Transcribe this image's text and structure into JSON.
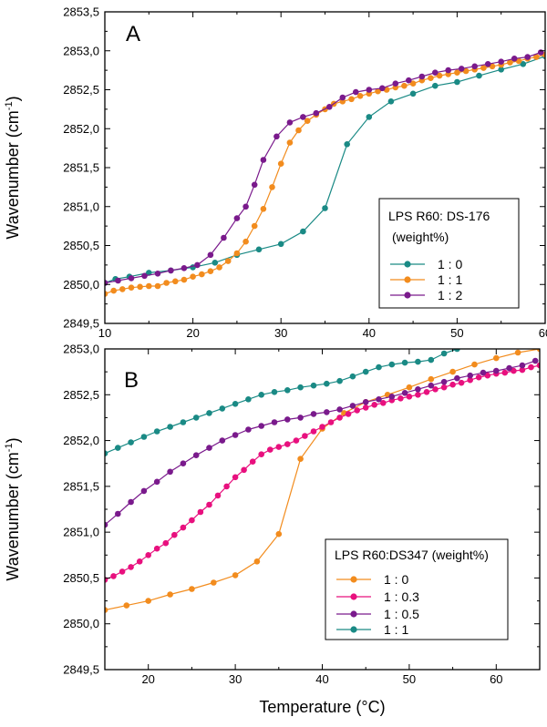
{
  "chart_data": [
    {
      "type": "line",
      "panel_label": "A",
      "title": "",
      "xlabel": "",
      "ylabel": "Wavenumber (cm",
      "ylabel_sup": "-1",
      "ylabel_end": ")",
      "xlim": [
        10,
        60
      ],
      "ylim": [
        2849.5,
        2853.5
      ],
      "xticks": [
        10,
        20,
        30,
        40,
        50,
        60
      ],
      "xtick_labels": [
        "10",
        "20",
        "30",
        "40",
        "50",
        "60"
      ],
      "yticks": [
        2849.5,
        2850.0,
        2850.5,
        2851.0,
        2851.5,
        2852.0,
        2852.5,
        2853.0,
        2853.5
      ],
      "ytick_labels": [
        "2849,5",
        "2850,0",
        "2850,5",
        "2851,0",
        "2851,5",
        "2852,0",
        "2852,5",
        "2853,0",
        "2853,5"
      ],
      "grid": false,
      "legend_position": "center-right",
      "legend_title_line1": "LPS R60: DS-176",
      "legend_title_line2": "(weight%)",
      "series": [
        {
          "name": "1 : 0",
          "color": "#1a8a85",
          "points": [
            [
              10.0,
              2850.02
            ],
            [
              11.2,
              2850.07
            ],
            [
              12.8,
              2850.1
            ],
            [
              15.0,
              2850.15
            ],
            [
              17.5,
              2850.18
            ],
            [
              20.0,
              2850.22
            ],
            [
              22.5,
              2850.28
            ],
            [
              25.0,
              2850.38
            ],
            [
              27.5,
              2850.45
            ],
            [
              30.0,
              2850.52
            ],
            [
              32.5,
              2850.68
            ],
            [
              35.0,
              2850.98
            ],
            [
              37.5,
              2851.8
            ],
            [
              40.0,
              2852.15
            ],
            [
              42.5,
              2852.35
            ],
            [
              45.0,
              2852.45
            ],
            [
              47.5,
              2852.55
            ],
            [
              50.0,
              2852.6
            ],
            [
              52.5,
              2852.68
            ],
            [
              55.0,
              2852.76
            ],
            [
              57.5,
              2852.83
            ],
            [
              60.0,
              2852.93
            ]
          ]
        },
        {
          "name": "1 : 1",
          "color": "#f28c1e",
          "points": [
            [
              10.0,
              2849.88
            ],
            [
              11.0,
              2849.92
            ],
            [
              12.0,
              2849.94
            ],
            [
              13.0,
              2849.96
            ],
            [
              14.0,
              2849.97
            ],
            [
              15.0,
              2849.98
            ],
            [
              16.0,
              2849.98
            ],
            [
              17.0,
              2850.02
            ],
            [
              18.0,
              2850.04
            ],
            [
              19.0,
              2850.06
            ],
            [
              20.0,
              2850.1
            ],
            [
              21.0,
              2850.13
            ],
            [
              22.0,
              2850.17
            ],
            [
              23.0,
              2850.22
            ],
            [
              24.0,
              2850.3
            ],
            [
              25.0,
              2850.4
            ],
            [
              26.0,
              2850.55
            ],
            [
              27.0,
              2850.75
            ],
            [
              28.0,
              2850.97
            ],
            [
              29.0,
              2851.25
            ],
            [
              30.0,
              2851.55
            ],
            [
              31.0,
              2851.82
            ],
            [
              32.0,
              2851.98
            ],
            [
              33.0,
              2852.1
            ],
            [
              34.0,
              2852.18
            ],
            [
              35.0,
              2852.25
            ],
            [
              36.0,
              2852.32
            ],
            [
              37.0,
              2852.35
            ],
            [
              38.0,
              2852.38
            ],
            [
              39.0,
              2852.42
            ],
            [
              40.0,
              2852.45
            ],
            [
              41.0,
              2852.48
            ],
            [
              42.0,
              2852.5
            ],
            [
              43.0,
              2852.53
            ],
            [
              44.0,
              2852.55
            ],
            [
              45.0,
              2852.58
            ],
            [
              46.0,
              2852.62
            ],
            [
              47.0,
              2852.65
            ],
            [
              48.0,
              2852.68
            ],
            [
              49.0,
              2852.7
            ],
            [
              50.0,
              2852.72
            ],
            [
              51.0,
              2852.74
            ],
            [
              52.0,
              2852.76
            ],
            [
              53.0,
              2852.78
            ],
            [
              54.0,
              2852.8
            ],
            [
              55.0,
              2852.82
            ],
            [
              56.0,
              2852.85
            ],
            [
              57.0,
              2852.87
            ],
            [
              58.0,
              2852.9
            ],
            [
              59.0,
              2852.92
            ],
            [
              60.0,
              2852.95
            ]
          ]
        },
        {
          "name": "1 : 2",
          "color": "#7a1a8c",
          "points": [
            [
              10.0,
              2850.02
            ],
            [
              11.5,
              2850.05
            ],
            [
              13.0,
              2850.08
            ],
            [
              14.5,
              2850.11
            ],
            [
              16.0,
              2850.14
            ],
            [
              17.5,
              2850.18
            ],
            [
              19.0,
              2850.21
            ],
            [
              20.5,
              2850.25
            ],
            [
              22.0,
              2850.38
            ],
            [
              23.5,
              2850.6
            ],
            [
              25.0,
              2850.85
            ],
            [
              26.0,
              2851.0
            ],
            [
              27.0,
              2851.28
            ],
            [
              28.0,
              2851.6
            ],
            [
              29.5,
              2851.9
            ],
            [
              31.0,
              2852.08
            ],
            [
              32.5,
              2852.15
            ],
            [
              34.0,
              2852.2
            ],
            [
              35.5,
              2852.28
            ],
            [
              37.0,
              2852.4
            ],
            [
              38.5,
              2852.47
            ],
            [
              40.0,
              2852.5
            ],
            [
              41.5,
              2852.52
            ],
            [
              43.0,
              2852.58
            ],
            [
              44.5,
              2852.62
            ],
            [
              46.0,
              2852.67
            ],
            [
              47.5,
              2852.72
            ],
            [
              49.0,
              2852.75
            ],
            [
              50.5,
              2852.77
            ],
            [
              52.0,
              2852.8
            ],
            [
              53.5,
              2852.83
            ],
            [
              55.0,
              2852.86
            ],
            [
              56.5,
              2852.9
            ],
            [
              58.0,
              2852.92
            ],
            [
              59.5,
              2852.98
            ]
          ]
        }
      ]
    },
    {
      "type": "line",
      "panel_label": "B",
      "title": "",
      "xlabel": "Temperature (°C)",
      "ylabel": "Wavenumber (cm",
      "ylabel_sup": "-1",
      "ylabel_end": ")",
      "xlim": [
        15,
        65
      ],
      "ylim": [
        2849.5,
        2853.0
      ],
      "xticks": [
        20,
        30,
        40,
        50,
        60
      ],
      "xtick_labels": [
        "20",
        "30",
        "40",
        "50",
        "60"
      ],
      "yticks": [
        2849.5,
        2850.0,
        2850.5,
        2851.0,
        2851.5,
        2852.0,
        2852.5,
        2853.0
      ],
      "ytick_labels": [
        "2849,5",
        "2850,0",
        "2850,5",
        "2851,0",
        "2851,5",
        "2852,0",
        "2852,5",
        "2853,0"
      ],
      "grid": false,
      "legend_position": "bottom-right",
      "legend_title_line1": "LPS R60:DS347 (weight%)",
      "series": [
        {
          "name": "1 : 0",
          "color": "#f28c1e",
          "points": [
            [
              15.0,
              2850.15
            ],
            [
              17.5,
              2850.2
            ],
            [
              20.0,
              2850.25
            ],
            [
              22.5,
              2850.32
            ],
            [
              25.0,
              2850.38
            ],
            [
              27.5,
              2850.45
            ],
            [
              30.0,
              2850.53
            ],
            [
              32.5,
              2850.68
            ],
            [
              35.0,
              2850.98
            ],
            [
              37.5,
              2851.8
            ],
            [
              40.0,
              2852.13
            ],
            [
              42.5,
              2852.3
            ],
            [
              45.0,
              2852.42
            ],
            [
              47.5,
              2852.5
            ],
            [
              50.0,
              2852.58
            ],
            [
              52.5,
              2852.67
            ],
            [
              55.0,
              2852.75
            ],
            [
              57.5,
              2852.83
            ],
            [
              60.0,
              2852.9
            ],
            [
              62.5,
              2852.96
            ],
            [
              65.0,
              2853.0
            ]
          ]
        },
        {
          "name": "1 : 0.3",
          "color": "#e8107e",
          "points": [
            [
              15.0,
              2850.48
            ],
            [
              16.0,
              2850.52
            ],
            [
              17.0,
              2850.57
            ],
            [
              18.0,
              2850.62
            ],
            [
              19.0,
              2850.68
            ],
            [
              20.0,
              2850.75
            ],
            [
              21.0,
              2850.82
            ],
            [
              22.0,
              2850.88
            ],
            [
              23.0,
              2850.97
            ],
            [
              24.0,
              2851.05
            ],
            [
              25.0,
              2851.13
            ],
            [
              26.0,
              2851.22
            ],
            [
              27.0,
              2851.3
            ],
            [
              28.0,
              2851.4
            ],
            [
              29.0,
              2851.5
            ],
            [
              30.0,
              2851.6
            ],
            [
              31.0,
              2851.68
            ],
            [
              32.0,
              2851.77
            ],
            [
              33.0,
              2851.85
            ],
            [
              34.0,
              2851.9
            ],
            [
              35.0,
              2851.93
            ],
            [
              36.0,
              2851.96
            ],
            [
              37.0,
              2852.0
            ],
            [
              38.0,
              2852.05
            ],
            [
              39.0,
              2852.1
            ],
            [
              40.0,
              2852.15
            ],
            [
              41.0,
              2852.2
            ],
            [
              42.0,
              2852.25
            ],
            [
              43.0,
              2852.29
            ],
            [
              44.0,
              2852.33
            ],
            [
              45.0,
              2852.36
            ],
            [
              46.0,
              2852.39
            ],
            [
              47.0,
              2852.41
            ],
            [
              48.0,
              2852.44
            ],
            [
              49.0,
              2852.46
            ],
            [
              50.0,
              2852.48
            ],
            [
              51.0,
              2852.5
            ],
            [
              52.0,
              2852.53
            ],
            [
              53.0,
              2852.56
            ],
            [
              54.0,
              2852.58
            ],
            [
              55.0,
              2852.61
            ],
            [
              56.0,
              2852.63
            ],
            [
              57.0,
              2852.66
            ],
            [
              58.0,
              2852.69
            ],
            [
              59.0,
              2852.71
            ],
            [
              60.0,
              2852.73
            ],
            [
              61.0,
              2852.74
            ],
            [
              62.0,
              2852.76
            ],
            [
              63.0,
              2852.77
            ],
            [
              64.0,
              2852.8
            ],
            [
              65.0,
              2852.82
            ]
          ]
        },
        {
          "name": "1 : 0.5",
          "color": "#7a1a8c",
          "points": [
            [
              15.0,
              2851.08
            ],
            [
              16.5,
              2851.2
            ],
            [
              18.0,
              2851.33
            ],
            [
              19.5,
              2851.45
            ],
            [
              21.0,
              2851.55
            ],
            [
              22.5,
              2851.66
            ],
            [
              24.0,
              2851.75
            ],
            [
              25.5,
              2851.84
            ],
            [
              27.0,
              2851.92
            ],
            [
              28.5,
              2852.0
            ],
            [
              30.0,
              2852.06
            ],
            [
              31.5,
              2852.12
            ],
            [
              33.0,
              2852.16
            ],
            [
              34.5,
              2852.2
            ],
            [
              36.0,
              2852.23
            ],
            [
              37.5,
              2852.25
            ],
            [
              39.0,
              2852.29
            ],
            [
              40.5,
              2852.31
            ],
            [
              42.0,
              2852.34
            ],
            [
              43.5,
              2852.38
            ],
            [
              45.0,
              2852.42
            ],
            [
              46.5,
              2852.45
            ],
            [
              48.0,
              2852.48
            ],
            [
              49.5,
              2852.52
            ],
            [
              51.0,
              2852.56
            ],
            [
              52.5,
              2852.6
            ],
            [
              54.0,
              2852.64
            ],
            [
              55.5,
              2852.68
            ],
            [
              57.0,
              2852.71
            ],
            [
              58.5,
              2852.74
            ],
            [
              60.0,
              2852.76
            ],
            [
              61.5,
              2852.79
            ],
            [
              63.0,
              2852.82
            ],
            [
              64.5,
              2852.87
            ]
          ]
        },
        {
          "name": "1 : 1",
          "color": "#1a8a85",
          "points": [
            [
              15.0,
              2851.86
            ],
            [
              16.5,
              2851.92
            ],
            [
              18.0,
              2851.98
            ],
            [
              19.5,
              2852.04
            ],
            [
              21.0,
              2852.1
            ],
            [
              22.5,
              2852.15
            ],
            [
              24.0,
              2852.2
            ],
            [
              25.5,
              2852.25
            ],
            [
              27.0,
              2852.3
            ],
            [
              28.5,
              2852.35
            ],
            [
              30.0,
              2852.4
            ],
            [
              31.5,
              2852.45
            ],
            [
              33.0,
              2852.5
            ],
            [
              34.5,
              2852.53
            ],
            [
              36.0,
              2852.55
            ],
            [
              37.5,
              2852.58
            ],
            [
              39.0,
              2852.6
            ],
            [
              40.5,
              2852.62
            ],
            [
              42.0,
              2852.65
            ],
            [
              43.5,
              2852.7
            ],
            [
              45.0,
              2852.75
            ],
            [
              46.5,
              2852.8
            ],
            [
              48.0,
              2852.83
            ],
            [
              49.5,
              2852.85
            ],
            [
              51.0,
              2852.86
            ],
            [
              52.5,
              2852.88
            ],
            [
              54.0,
              2852.95
            ],
            [
              55.5,
              2853.0
            ]
          ]
        }
      ]
    }
  ]
}
